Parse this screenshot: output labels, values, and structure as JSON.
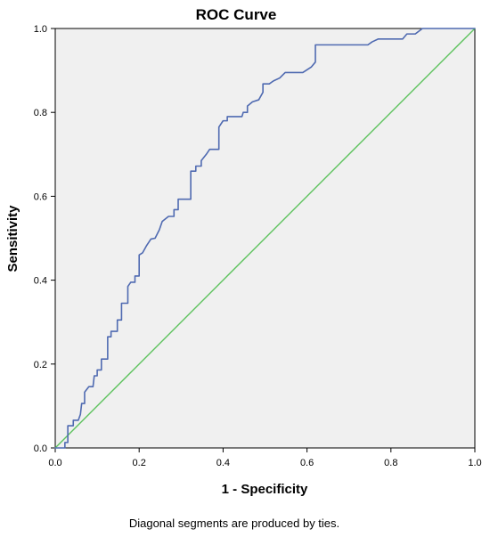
{
  "chart_data": {
    "type": "line",
    "title": "ROC Curve",
    "xlabel": "1 - Specificity",
    "ylabel": "Sensitivity",
    "xlim": [
      0,
      1
    ],
    "ylim": [
      0,
      1
    ],
    "x_ticks": [
      "0.0",
      "0.2",
      "0.4",
      "0.6",
      "0.8",
      "1.0"
    ],
    "y_ticks": [
      "0.0",
      "0.2",
      "0.4",
      "0.6",
      "0.8",
      "1.0"
    ],
    "grid": false,
    "legend": "none",
    "annotation": "Diagonal segments are produced by ties.",
    "plot_background": "#f0f0f0",
    "series": [
      {
        "color": "#4f6ab1",
        "points": [
          [
            0.0,
            0.0
          ],
          [
            0.023,
            0.0
          ],
          [
            0.023,
            0.013
          ],
          [
            0.03,
            0.013
          ],
          [
            0.03,
            0.053
          ],
          [
            0.043,
            0.053
          ],
          [
            0.043,
            0.066
          ],
          [
            0.055,
            0.066
          ],
          [
            0.06,
            0.08
          ],
          [
            0.063,
            0.106
          ],
          [
            0.07,
            0.106
          ],
          [
            0.07,
            0.133
          ],
          [
            0.08,
            0.146
          ],
          [
            0.09,
            0.146
          ],
          [
            0.093,
            0.172
          ],
          [
            0.1,
            0.172
          ],
          [
            0.1,
            0.186
          ],
          [
            0.11,
            0.186
          ],
          [
            0.11,
            0.212
          ],
          [
            0.125,
            0.212
          ],
          [
            0.125,
            0.265
          ],
          [
            0.133,
            0.265
          ],
          [
            0.133,
            0.278
          ],
          [
            0.148,
            0.278
          ],
          [
            0.148,
            0.305
          ],
          [
            0.158,
            0.305
          ],
          [
            0.158,
            0.345
          ],
          [
            0.173,
            0.345
          ],
          [
            0.173,
            0.385
          ],
          [
            0.18,
            0.395
          ],
          [
            0.19,
            0.395
          ],
          [
            0.19,
            0.41
          ],
          [
            0.2,
            0.41
          ],
          [
            0.2,
            0.46
          ],
          [
            0.208,
            0.465
          ],
          [
            0.218,
            0.483
          ],
          [
            0.228,
            0.498
          ],
          [
            0.238,
            0.5
          ],
          [
            0.248,
            0.52
          ],
          [
            0.255,
            0.54
          ],
          [
            0.27,
            0.552
          ],
          [
            0.283,
            0.552
          ],
          [
            0.283,
            0.568
          ],
          [
            0.293,
            0.568
          ],
          [
            0.293,
            0.593
          ],
          [
            0.323,
            0.593
          ],
          [
            0.323,
            0.66
          ],
          [
            0.335,
            0.66
          ],
          [
            0.335,
            0.672
          ],
          [
            0.348,
            0.672
          ],
          [
            0.348,
            0.685
          ],
          [
            0.36,
            0.7
          ],
          [
            0.368,
            0.712
          ],
          [
            0.39,
            0.712
          ],
          [
            0.39,
            0.765
          ],
          [
            0.4,
            0.78
          ],
          [
            0.41,
            0.78
          ],
          [
            0.41,
            0.79
          ],
          [
            0.445,
            0.79
          ],
          [
            0.448,
            0.8
          ],
          [
            0.458,
            0.8
          ],
          [
            0.458,
            0.815
          ],
          [
            0.47,
            0.825
          ],
          [
            0.485,
            0.83
          ],
          [
            0.495,
            0.848
          ],
          [
            0.495,
            0.868
          ],
          [
            0.51,
            0.868
          ],
          [
            0.52,
            0.875
          ],
          [
            0.535,
            0.882
          ],
          [
            0.548,
            0.895
          ],
          [
            0.59,
            0.895
          ],
          [
            0.61,
            0.908
          ],
          [
            0.62,
            0.92
          ],
          [
            0.62,
            0.961
          ],
          [
            0.745,
            0.961
          ],
          [
            0.755,
            0.968
          ],
          [
            0.77,
            0.975
          ],
          [
            0.828,
            0.975
          ],
          [
            0.838,
            0.987
          ],
          [
            0.858,
            0.987
          ],
          [
            0.875,
            1.0
          ],
          [
            1.0,
            1.0
          ]
        ]
      },
      {
        "color": "#5cc25c",
        "points": [
          [
            0,
            0
          ],
          [
            1,
            1
          ]
        ]
      }
    ]
  }
}
